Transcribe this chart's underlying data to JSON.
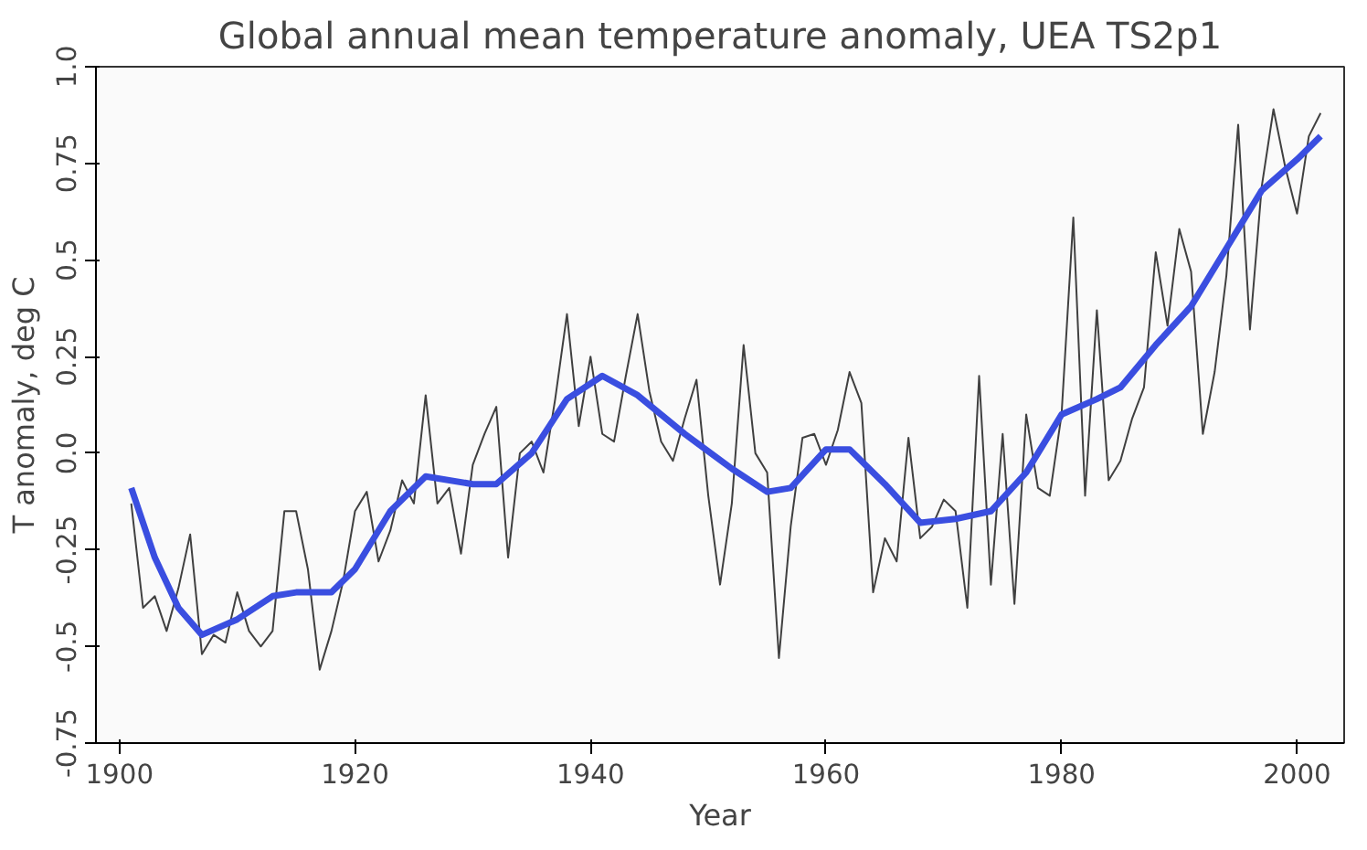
{
  "chart_data": {
    "type": "line",
    "title": "Global annual mean temperature anomaly, UEA TS2p1",
    "xlabel": "Year",
    "ylabel": "T anomaly, deg C",
    "xlim": [
      1898,
      2004
    ],
    "ylim": [
      -0.75,
      1.0
    ],
    "xticks": [
      1900,
      1920,
      1940,
      1960,
      1980,
      2000
    ],
    "yticks": [
      {
        "value": -0.75,
        "label": "-0.75"
      },
      {
        "value": -0.5,
        "label": "-0.5"
      },
      {
        "value": -0.25,
        "label": "-0.25"
      },
      {
        "value": 0,
        "label": "0.0"
      },
      {
        "value": 0.25,
        "label": "0.25"
      },
      {
        "value": 0.5,
        "label": "0.5"
      },
      {
        "value": 0.75,
        "label": "0.75"
      },
      {
        "value": 1,
        "label": "1.0"
      }
    ],
    "grid": false,
    "marker": "none",
    "line_style": "solid",
    "series": [
      {
        "color": "#404040",
        "x": [
          1901,
          1902,
          1903,
          1904,
          1905,
          1906,
          1907,
          1908,
          1909,
          1910,
          1911,
          1912,
          1913,
          1914,
          1915,
          1916,
          1917,
          1918,
          1919,
          1920,
          1921,
          1922,
          1923,
          1924,
          1925,
          1926,
          1927,
          1928,
          1929,
          1930,
          1931,
          1932,
          1933,
          1934,
          1935,
          1936,
          1937,
          1938,
          1939,
          1940,
          1941,
          1942,
          1943,
          1944,
          1945,
          1946,
          1947,
          1948,
          1949,
          1950,
          1951,
          1952,
          1953,
          1954,
          1955,
          1956,
          1957,
          1958,
          1959,
          1960,
          1961,
          1962,
          1963,
          1964,
          1965,
          1966,
          1967,
          1968,
          1969,
          1970,
          1971,
          1972,
          1973,
          1974,
          1975,
          1976,
          1977,
          1978,
          1979,
          1980,
          1981,
          1982,
          1983,
          1984,
          1985,
          1986,
          1987,
          1988,
          1989,
          1990,
          1991,
          1992,
          1993,
          1994,
          1995,
          1996,
          1997,
          1998,
          1999,
          2000,
          2001,
          2002
        ],
        "values": [
          -0.13,
          -0.4,
          -0.37,
          -0.46,
          -0.35,
          -0.21,
          -0.52,
          -0.47,
          -0.49,
          -0.36,
          -0.46,
          -0.5,
          -0.46,
          -0.15,
          -0.15,
          -0.3,
          -0.56,
          -0.46,
          -0.33,
          -0.15,
          -0.1,
          -0.28,
          -0.2,
          -0.07,
          -0.13,
          0.15,
          -0.13,
          -0.09,
          -0.26,
          -0.03,
          0.05,
          0.12,
          -0.27,
          0.0,
          0.03,
          -0.05,
          0.14,
          0.36,
          0.07,
          0.25,
          0.05,
          0.03,
          0.2,
          0.36,
          0.16,
          0.03,
          -0.02,
          0.09,
          0.19,
          -0.11,
          -0.34,
          -0.13,
          0.28,
          0.0,
          -0.05,
          -0.53,
          -0.19,
          0.04,
          0.05,
          -0.03,
          0.06,
          0.21,
          0.13,
          -0.36,
          -0.22,
          -0.28,
          0.04,
          -0.22,
          -0.19,
          -0.12,
          -0.15,
          -0.4,
          0.2,
          -0.34,
          0.05,
          -0.39,
          0.1,
          -0.09,
          -0.11,
          0.1,
          0.61,
          -0.11,
          0.37,
          -0.07,
          -0.02,
          0.09,
          0.17,
          0.52,
          0.33,
          0.58,
          0.47,
          0.05,
          0.21,
          0.46,
          0.85,
          0.32,
          0.69,
          0.89,
          0.74,
          0.62,
          0.82,
          0.88
        ]
      },
      {
        "color": "#3a4ee0",
        "x": [
          1901,
          1903,
          1905,
          1907,
          1910,
          1913,
          1915,
          1918,
          1920,
          1923,
          1926,
          1930,
          1932,
          1935,
          1938,
          1941,
          1944,
          1948,
          1952,
          1955,
          1957,
          1960,
          1962,
          1965,
          1968,
          1971,
          1974,
          1977,
          1980,
          1983,
          1985,
          1988,
          1991,
          1994,
          1997,
          2000,
          2002
        ],
        "values": [
          -0.09,
          -0.27,
          -0.4,
          -0.47,
          -0.43,
          -0.37,
          -0.36,
          -0.36,
          -0.3,
          -0.15,
          -0.06,
          -0.08,
          -0.08,
          0.0,
          0.14,
          0.2,
          0.15,
          0.05,
          -0.04,
          -0.1,
          -0.09,
          0.01,
          0.01,
          -0.08,
          -0.18,
          -0.17,
          -0.15,
          -0.05,
          0.1,
          0.14,
          0.17,
          0.28,
          0.38,
          0.53,
          0.68,
          0.76,
          0.82
        ]
      }
    ]
  }
}
